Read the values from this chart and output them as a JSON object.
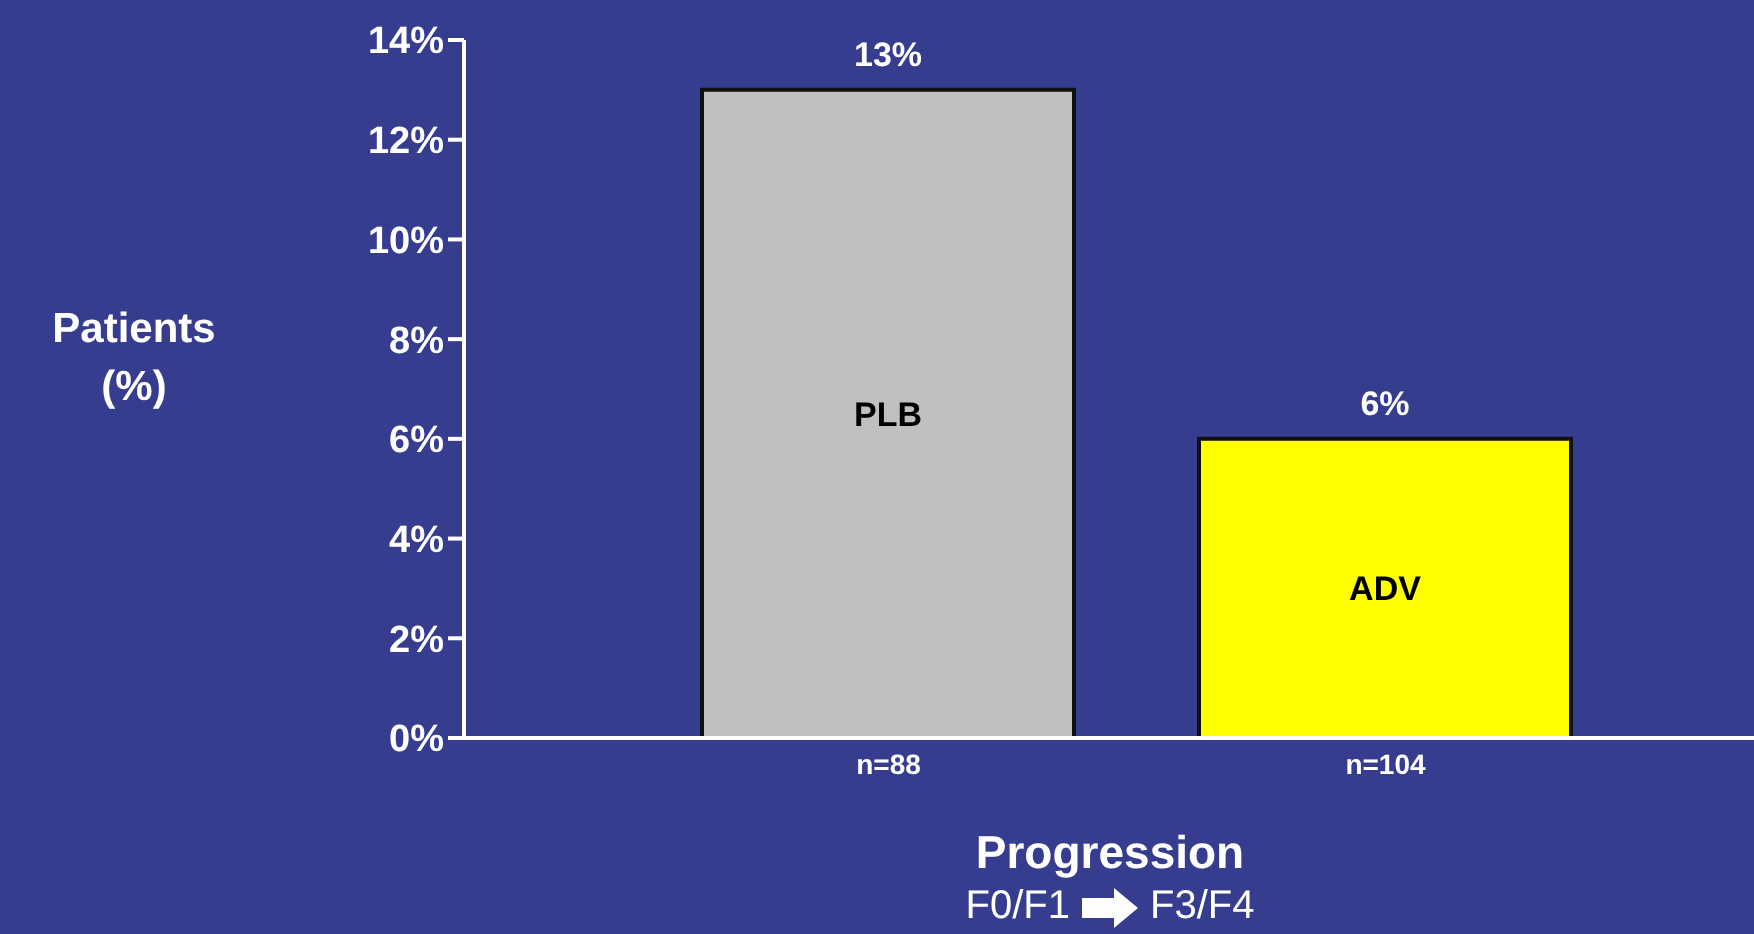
{
  "chart_data": {
    "type": "bar",
    "ylabel": "Patients (%)",
    "xlabel": "Progression",
    "categories": [
      "n=88",
      "n=104"
    ],
    "values": [
      13,
      6
    ],
    "colors": [
      "#c0c0c0",
      "#ffff00"
    ],
    "value_labels": [
      "13%",
      "6%"
    ],
    "ylim": [
      0,
      14
    ],
    "yticks": [
      {
        "value": 0,
        "label": "0%"
      },
      {
        "value": 2,
        "label": "2%"
      },
      {
        "value": 4,
        "label": "4%"
      },
      {
        "value": 6,
        "label": "6%"
      },
      {
        "value": 8,
        "label": "8%"
      },
      {
        "value": 10,
        "label": "10%"
      },
      {
        "value": 12,
        "label": "12%"
      },
      {
        "value": 14,
        "label": "14%"
      }
    ],
    "annotations": [
      "PLB",
      "ADV",
      "F0/F1",
      "F3/F4"
    ],
    "grid": false,
    "legend": false
  }
}
